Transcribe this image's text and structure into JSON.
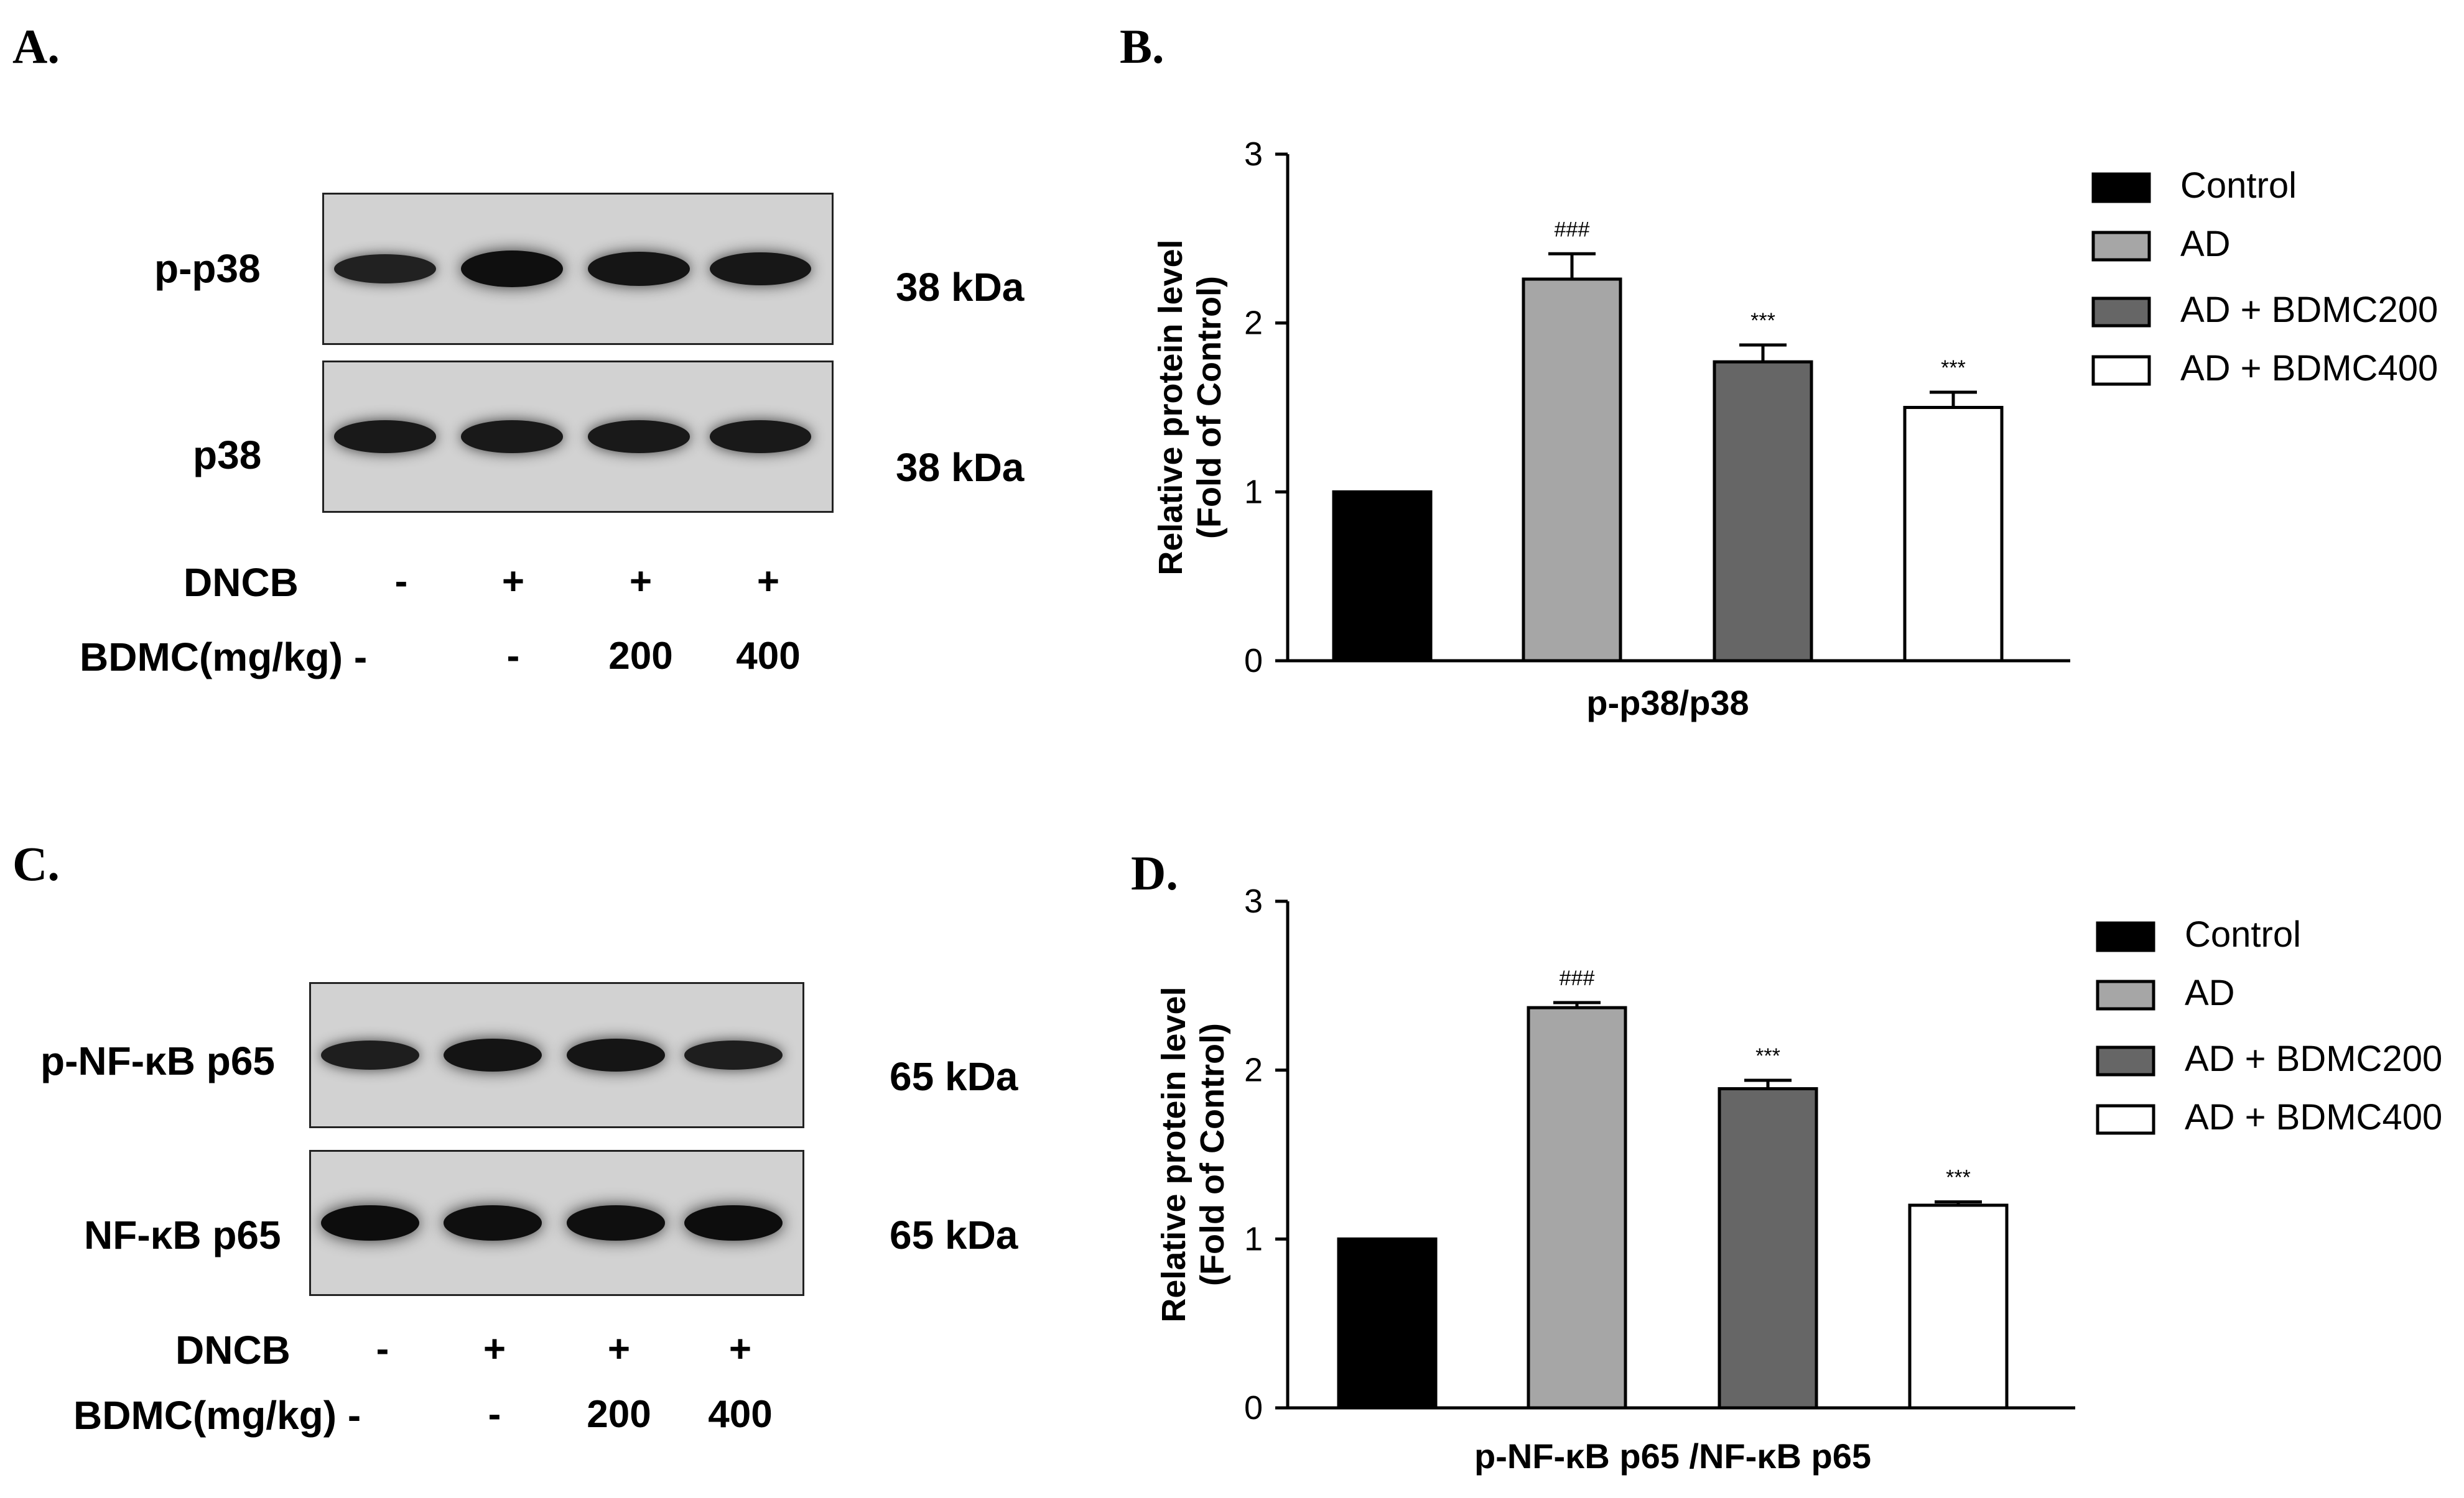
{
  "panels": {
    "a": {
      "letter": "A.",
      "blots": [
        {
          "label": "p-p38",
          "size": "38 kDa",
          "intensity": [
            0.55,
            0.9,
            0.78,
            0.75
          ]
        },
        {
          "label": "p38",
          "size": "38 kDa",
          "intensity": [
            0.7,
            0.7,
            0.7,
            0.7
          ]
        }
      ],
      "conditions": [
        {
          "label": "DNCB",
          "values": [
            "-",
            "+",
            "+",
            "+"
          ]
        },
        {
          "label": "BDMC(mg/kg) -",
          "values": [
            "",
            "-",
            "200",
            "400"
          ]
        }
      ]
    },
    "c": {
      "letter": "C.",
      "blots": [
        {
          "label": "p-NF-κB p65",
          "size": "65 kDa",
          "intensity": [
            0.6,
            0.8,
            0.78,
            0.6
          ]
        },
        {
          "label": "NF-κB p65",
          "size": "65 kDa",
          "intensity": [
            0.95,
            0.9,
            0.9,
            0.95
          ]
        }
      ],
      "conditions": [
        {
          "label": "DNCB",
          "values": [
            "-",
            "+",
            "+",
            "+"
          ]
        },
        {
          "label": "BDMC(mg/kg) -",
          "values": [
            "",
            "-",
            "200",
            "400"
          ]
        }
      ]
    },
    "b": {
      "letter": "B."
    },
    "d": {
      "letter": "D."
    }
  },
  "colors": {
    "Control": "#000000",
    "AD": "#a6a6a6",
    "AD + BDMC200": "#666666",
    "AD + BDMC400": "#ffffff"
  },
  "chart_data": [
    {
      "type": "bar",
      "xlabel": "p-p38/p38",
      "ylabel": [
        "Relative protein level",
        "(Fold of Control)"
      ],
      "ylim": [
        0,
        3
      ],
      "yticks": [
        "0",
        "1",
        "2",
        "3"
      ],
      "categories": [
        "Control",
        "AD",
        "AD + BDMC200",
        "AD + BDMC400"
      ],
      "values": [
        1.0,
        2.26,
        1.77,
        1.5
      ],
      "errors": [
        0.0,
        0.15,
        0.1,
        0.09
      ],
      "annotations": [
        "",
        "###",
        "***",
        "***"
      ],
      "legend": [
        "Control",
        "AD",
        "AD + BDMC200",
        "AD + BDMC400"
      ]
    },
    {
      "type": "bar",
      "xlabel": "p-NF-κB p65 /NF-κB p65",
      "ylabel": [
        "Relative protein level",
        "(Fold of Control)"
      ],
      "ylim": [
        0,
        3
      ],
      "yticks": [
        "0",
        "1",
        "2",
        "3"
      ],
      "categories": [
        "Control",
        "AD",
        "AD + BDMC200",
        "AD + BDMC400"
      ],
      "values": [
        1.0,
        2.37,
        1.89,
        1.2
      ],
      "errors": [
        0.0,
        0.03,
        0.05,
        0.02
      ],
      "annotations": [
        "",
        "###",
        "***",
        "***"
      ],
      "legend": [
        "Control",
        "AD",
        "AD + BDMC200",
        "AD + BDMC400"
      ]
    }
  ]
}
